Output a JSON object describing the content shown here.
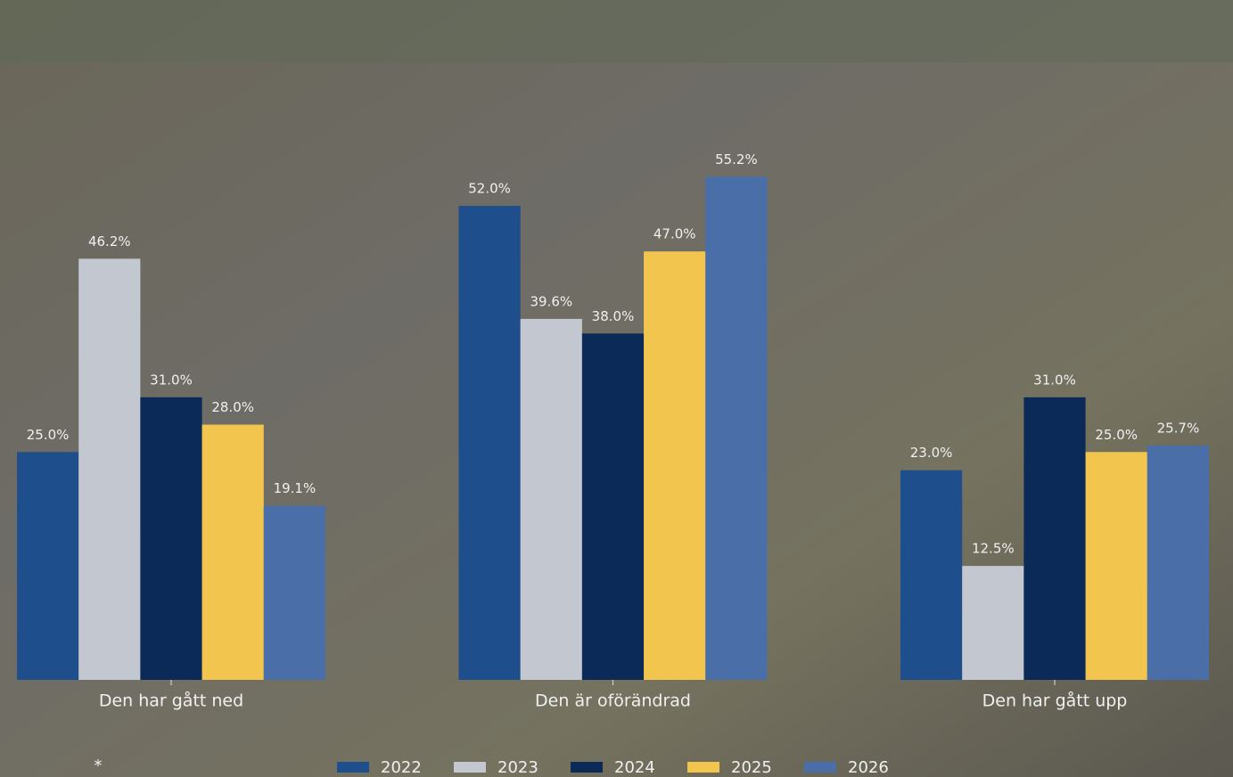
{
  "chart_data": {
    "type": "bar",
    "categories": [
      "Den har gått ned",
      "Den är oförändrad",
      "Den har gått upp"
    ],
    "series": [
      {
        "name": "2022",
        "color": "#1f4e8c",
        "values": [
          25.0,
          52.0,
          23.0
        ],
        "value_labels": [
          "25.0%",
          "52.0%",
          "23.0%"
        ]
      },
      {
        "name": "2023",
        "color": "#c2c7d0",
        "values": [
          46.2,
          39.6,
          12.5
        ],
        "value_labels": [
          "46.2%",
          "39.6%",
          "12.5%"
        ]
      },
      {
        "name": "2024",
        "color": "#0b2a57",
        "values": [
          31.0,
          38.0,
          31.0
        ],
        "value_labels": [
          "31.0%",
          "38.0%",
          "31.0%"
        ]
      },
      {
        "name": "2025",
        "color": "#f2c64e",
        "values": [
          28.0,
          47.0,
          25.0
        ],
        "value_labels": [
          "28.0%",
          "47.0%",
          "25.0%"
        ]
      },
      {
        "name": "2026",
        "color": "#4a6fa8",
        "values": [
          19.1,
          55.2,
          25.7
        ],
        "value_labels": [
          "19.1%",
          "55.2%",
          "25.7%"
        ]
      }
    ],
    "ylim": [
      0,
      60
    ],
    "grid": false,
    "legend": "bottom",
    "note": "*"
  }
}
